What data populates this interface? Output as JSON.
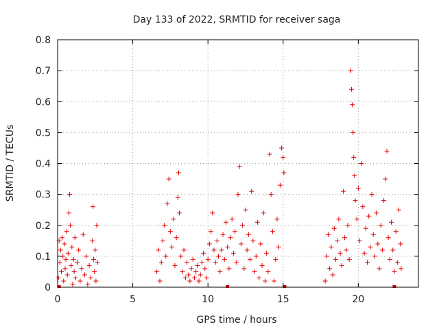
{
  "chart_data": {
    "type": "scatter",
    "title": "Day 133 of 2022, SRMTID for receiver saga",
    "xlabel": "GPS time / hours",
    "ylabel": "SRMTID / TECUs",
    "xlim": [
      0,
      24
    ],
    "ylim": [
      0,
      0.8
    ],
    "xticks": [
      0,
      5,
      10,
      15,
      20
    ],
    "yticks": [
      0,
      0.1,
      0.2,
      0.3,
      0.4,
      0.5,
      0.6,
      0.7,
      0.8
    ],
    "xtick_labels": [
      "0",
      "5",
      "10",
      "15",
      "20"
    ],
    "ytick_labels": [
      "0",
      "0.1",
      "0.2",
      "0.3",
      "0.4",
      "0.5",
      "0.6",
      "0.7",
      "0.8"
    ],
    "grid": true,
    "marker": "+",
    "color": "#e00000",
    "series": [
      {
        "name": "SRMTID",
        "points": [
          [
            0.05,
            0.03
          ],
          [
            0.1,
            0.15
          ],
          [
            0.15,
            0.08
          ],
          [
            0.2,
            0.12
          ],
          [
            0.25,
            0.05
          ],
          [
            0.3,
            0.16
          ],
          [
            0.35,
            0.1
          ],
          [
            0.4,
            0.02
          ],
          [
            0.45,
            0.14
          ],
          [
            0.5,
            0.06
          ],
          [
            0.55,
            0.09
          ],
          [
            0.6,
            0.18
          ],
          [
            0.65,
            0.04
          ],
          [
            0.7,
            0.11
          ],
          [
            0.75,
            0.24
          ],
          [
            0.8,
            0.3
          ],
          [
            0.85,
            0.2
          ],
          [
            0.9,
            0.07
          ],
          [
            0.95,
            0.13
          ],
          [
            1.0,
            0.01
          ],
          [
            1.05,
            0.09
          ],
          [
            1.1,
            0.05
          ],
          [
            1.15,
            0.16
          ],
          [
            1.2,
            0.03
          ],
          [
            1.3,
            0.08
          ],
          [
            1.4,
            0.12
          ],
          [
            1.5,
            0.02
          ],
          [
            1.6,
            0.06
          ],
          [
            1.7,
            0.17
          ],
          [
            1.8,
            0.04
          ],
          [
            1.9,
            0.1
          ],
          [
            2.0,
            0.01
          ],
          [
            2.1,
            0.07
          ],
          [
            2.2,
            0.03
          ],
          [
            2.3,
            0.15
          ],
          [
            2.35,
            0.26
          ],
          [
            2.4,
            0.09
          ],
          [
            2.45,
            0.05
          ],
          [
            2.5,
            0.12
          ],
          [
            2.55,
            0.02
          ],
          [
            2.6,
            0.2
          ],
          [
            2.65,
            0.08
          ],
          [
            6.6,
            0.05
          ],
          [
            6.7,
            0.12
          ],
          [
            6.8,
            0.02
          ],
          [
            6.9,
            0.08
          ],
          [
            7.0,
            0.15
          ],
          [
            7.1,
            0.2
          ],
          [
            7.2,
            0.1
          ],
          [
            7.3,
            0.27
          ],
          [
            7.4,
            0.35
          ],
          [
            7.5,
            0.18
          ],
          [
            7.6,
            0.13
          ],
          [
            7.7,
            0.22
          ],
          [
            7.8,
            0.07
          ],
          [
            7.9,
            0.16
          ],
          [
            8.0,
            0.29
          ],
          [
            8.05,
            0.37
          ],
          [
            8.1,
            0.24
          ],
          [
            8.2,
            0.1
          ],
          [
            8.3,
            0.05
          ],
          [
            8.4,
            0.12
          ],
          [
            8.5,
            0.03
          ],
          [
            8.6,
            0.08
          ],
          [
            8.7,
            0.04
          ],
          [
            8.8,
            0.02
          ],
          [
            8.9,
            0.06
          ],
          [
            9.0,
            0.09
          ],
          [
            9.1,
            0.03
          ],
          [
            9.2,
            0.05
          ],
          [
            9.3,
            0.07
          ],
          [
            9.4,
            0.02
          ],
          [
            9.5,
            0.04
          ],
          [
            9.6,
            0.08
          ],
          [
            9.7,
            0.11
          ],
          [
            9.8,
            0.06
          ],
          [
            9.9,
            0.03
          ],
          [
            10.0,
            0.09
          ],
          [
            10.1,
            0.14
          ],
          [
            10.2,
            0.18
          ],
          [
            10.3,
            0.24
          ],
          [
            10.4,
            0.12
          ],
          [
            10.5,
            0.08
          ],
          [
            10.6,
            0.15
          ],
          [
            10.7,
            0.1
          ],
          [
            10.8,
            0.05
          ],
          [
            10.9,
            0.12
          ],
          [
            11.0,
            0.17
          ],
          [
            11.1,
            0.09
          ],
          [
            11.2,
            0.21
          ],
          [
            11.3,
            0.13
          ],
          [
            11.4,
            0.06
          ],
          [
            11.5,
            0.16
          ],
          [
            11.6,
            0.22
          ],
          [
            11.7,
            0.11
          ],
          [
            11.8,
            0.18
          ],
          [
            11.9,
            0.08
          ],
          [
            12.0,
            0.3
          ],
          [
            12.1,
            0.39
          ],
          [
            12.2,
            0.14
          ],
          [
            12.3,
            0.2
          ],
          [
            12.4,
            0.06
          ],
          [
            12.5,
            0.25
          ],
          [
            12.6,
            0.12
          ],
          [
            12.7,
            0.17
          ],
          [
            12.8,
            0.09
          ],
          [
            12.9,
            0.31
          ],
          [
            13.0,
            0.15
          ],
          [
            13.1,
            0.05
          ],
          [
            13.2,
            0.1
          ],
          [
            13.3,
            0.21
          ],
          [
            13.4,
            0.03
          ],
          [
            13.5,
            0.14
          ],
          [
            13.6,
            0.07
          ],
          [
            13.7,
            0.24
          ],
          [
            13.8,
            0.02
          ],
          [
            13.9,
            0.11
          ],
          [
            14.0,
            0.05
          ],
          [
            14.1,
            0.43
          ],
          [
            14.2,
            0.3
          ],
          [
            14.3,
            0.18
          ],
          [
            14.4,
            0.02
          ],
          [
            14.5,
            0.09
          ],
          [
            14.6,
            0.22
          ],
          [
            14.7,
            0.13
          ],
          [
            14.8,
            0.33
          ],
          [
            14.9,
            0.45
          ],
          [
            15.0,
            0.42
          ],
          [
            15.05,
            0.37
          ],
          [
            17.8,
            0.02
          ],
          [
            17.9,
            0.1
          ],
          [
            18.0,
            0.17
          ],
          [
            18.1,
            0.06
          ],
          [
            18.2,
            0.13
          ],
          [
            18.3,
            0.04
          ],
          [
            18.4,
            0.19
          ],
          [
            18.5,
            0.09
          ],
          [
            18.6,
            0.15
          ],
          [
            18.7,
            0.22
          ],
          [
            18.8,
            0.11
          ],
          [
            18.9,
            0.07
          ],
          [
            19.0,
            0.31
          ],
          [
            19.1,
            0.16
          ],
          [
            19.2,
            0.12
          ],
          [
            19.3,
            0.2
          ],
          [
            19.4,
            0.09
          ],
          [
            19.5,
            0.7
          ],
          [
            19.55,
            0.64
          ],
          [
            19.6,
            0.59
          ],
          [
            19.65,
            0.5
          ],
          [
            19.7,
            0.42
          ],
          [
            19.75,
            0.36
          ],
          [
            19.8,
            0.28
          ],
          [
            19.9,
            0.22
          ],
          [
            20.0,
            0.32
          ],
          [
            20.1,
            0.15
          ],
          [
            20.2,
            0.4
          ],
          [
            20.3,
            0.26
          ],
          [
            20.4,
            0.11
          ],
          [
            20.5,
            0.19
          ],
          [
            20.6,
            0.08
          ],
          [
            20.7,
            0.23
          ],
          [
            20.8,
            0.13
          ],
          [
            20.9,
            0.3
          ],
          [
            21.0,
            0.17
          ],
          [
            21.1,
            0.1
          ],
          [
            21.2,
            0.24
          ],
          [
            21.3,
            0.14
          ],
          [
            21.4,
            0.06
          ],
          [
            21.5,
            0.2
          ],
          [
            21.6,
            0.12
          ],
          [
            21.7,
            0.28
          ],
          [
            21.8,
            0.35
          ],
          [
            21.9,
            0.44
          ],
          [
            22.0,
            0.16
          ],
          [
            22.1,
            0.09
          ],
          [
            22.2,
            0.21
          ],
          [
            22.3,
            0.12
          ],
          [
            22.4,
            0.05
          ],
          [
            22.5,
            0.18
          ],
          [
            22.6,
            0.08
          ],
          [
            22.7,
            0.25
          ],
          [
            22.8,
            0.14
          ],
          [
            22.85,
            0.06
          ]
        ]
      }
    ],
    "zero_markers": [
      0.1,
      11.3,
      15.1,
      22.4
    ]
  }
}
